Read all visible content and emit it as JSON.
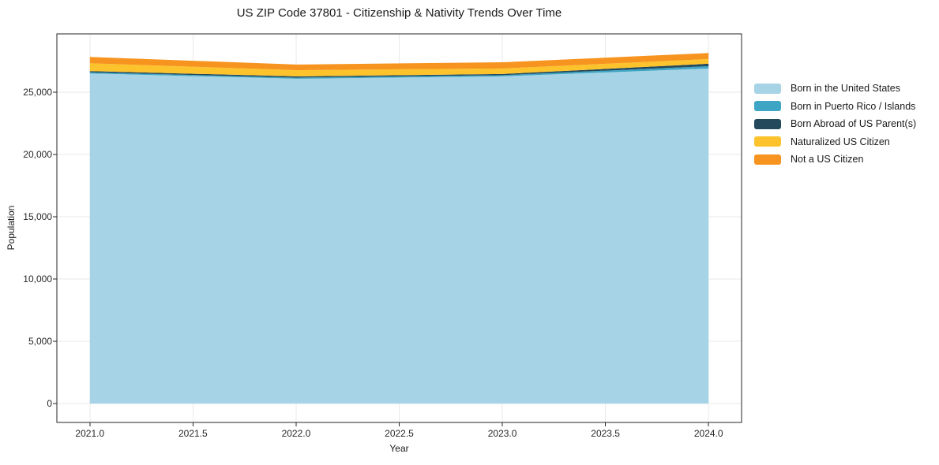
{
  "title": "US ZIP Code 37801 - Citizenship & Nativity Trends Over Time",
  "chart_data": {
    "type": "area",
    "stacked": true,
    "title": "US ZIP Code 37801 - Citizenship & Nativity Trends Over Time",
    "xlabel": "Year",
    "ylabel": "Population",
    "x": [
      2021,
      2022,
      2023,
      2024
    ],
    "series": [
      {
        "name": "Born in the United States",
        "color": "#a6d3e6",
        "values": [
          26500,
          26080,
          26270,
          26900
        ]
      },
      {
        "name": "Born in Puerto Rico / Islands",
        "color": "#3fa5c4",
        "values": [
          90,
          90,
          95,
          190
        ]
      },
      {
        "name": "Born Abroad of US Parent(s)",
        "color": "#23495c",
        "values": [
          100,
          100,
          95,
          190
        ]
      },
      {
        "name": "Naturalized US Citizen",
        "color": "#fcc32d",
        "values": [
          630,
          500,
          440,
          380
        ]
      },
      {
        "name": "Not a US Citizen",
        "color": "#f7941f",
        "values": [
          510,
          450,
          500,
          480
        ]
      }
    ],
    "xlim": [
      2020.84,
      2024.16
    ],
    "ylim": [
      -1520,
      29680
    ],
    "xticks": [
      2021.0,
      2021.5,
      2022.0,
      2022.5,
      2023.0,
      2023.5,
      2024.0
    ],
    "xtick_labels": [
      "2021.0",
      "2021.5",
      "2022.0",
      "2022.5",
      "2023.0",
      "2023.5",
      "2024.0"
    ],
    "yticks": [
      0,
      5000,
      10000,
      15000,
      20000,
      25000
    ],
    "ytick_labels": [
      "0",
      "5,000",
      "10,000",
      "15,000",
      "20,000",
      "25,000"
    ],
    "grid": true,
    "legend_position": "right-outside"
  },
  "colors": {
    "axis": "#262626",
    "grid": "#e9e9e9",
    "background": "#ffffff"
  }
}
